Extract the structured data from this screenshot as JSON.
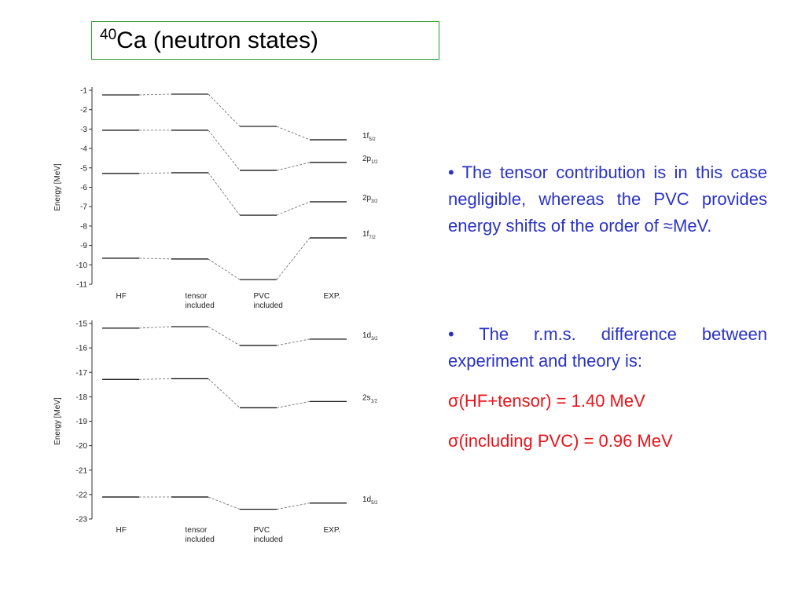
{
  "title": {
    "superscript": "40",
    "text": "Ca (neutron states)"
  },
  "chart_data": [
    {
      "type": "level",
      "ylabel": "Energy [MeV]",
      "categories": [
        "HF",
        "tensor included",
        "PVC included",
        "EXP."
      ],
      "ylim": [
        -11,
        -1
      ],
      "yticks": [
        -1,
        -2,
        -3,
        -4,
        -5,
        -6,
        -7,
        -8,
        -9,
        -10,
        -11
      ],
      "series": [
        {
          "name": "1f",
          "subscript": "5/2",
          "color": "#000000",
          "values": [
            -1.24,
            -1.2,
            -2.86,
            -3.55
          ]
        },
        {
          "name": "2p",
          "subscript": "1/2",
          "color": "#000000",
          "values": [
            -3.06,
            -3.06,
            -5.13,
            -4.72
          ]
        },
        {
          "name": "2p",
          "subscript": "3/2",
          "color": "#000000",
          "values": [
            -5.29,
            -5.25,
            -7.44,
            -6.75
          ]
        },
        {
          "name": "1f",
          "subscript": "7/2",
          "color": "#000000",
          "values": [
            -9.66,
            -9.7,
            -10.76,
            -8.61
          ]
        }
      ]
    },
    {
      "type": "level",
      "ylabel": "Energy [MeV]",
      "categories": [
        "HF",
        "tensor included",
        "PVC included",
        "EXP."
      ],
      "ylim": [
        -23,
        -15
      ],
      "yticks": [
        -15,
        -16,
        -17,
        -18,
        -19,
        -20,
        -21,
        -22,
        -23
      ],
      "series": [
        {
          "name": "1d",
          "subscript": "3/2",
          "color": "#000000",
          "values": [
            -15.19,
            -15.13,
            -15.9,
            -15.64
          ]
        },
        {
          "name": "2s",
          "subscript": "1/2",
          "color": "#000000",
          "values": [
            -17.29,
            -17.26,
            -18.45,
            -18.19
          ]
        },
        {
          "name": "1d",
          "subscript": "5/2",
          "color": "#000000",
          "values": [
            -22.1,
            -22.1,
            -22.6,
            -22.35
          ]
        }
      ]
    }
  ],
  "bullets": [
    "• The tensor contribution is in this case negligible, whereas the PVC provides energy shifts of the order of ≈MeV.",
    "• The r.m.s. difference between experiment and theory is:"
  ],
  "results": [
    "σ(HF+tensor) = 1.40 MeV",
    "σ(including PVC) = 0.96 MeV"
  ]
}
